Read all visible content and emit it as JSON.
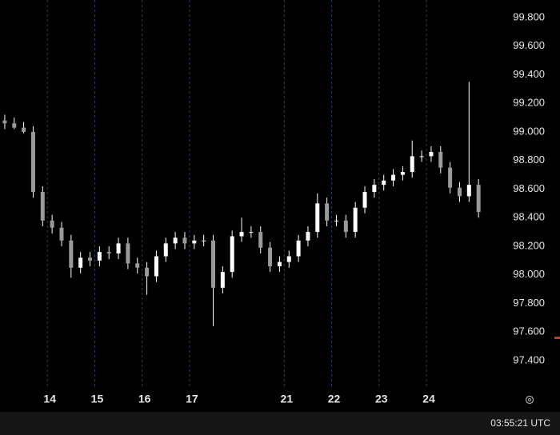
{
  "chart_data": {
    "type": "candlestick",
    "color": "#ffffff",
    "grid": "vertical",
    "grid_color": "#2a3f66",
    "x": [
      0.1,
      0.3,
      0.5,
      0.7,
      0.9,
      1.1,
      1.3,
      1.5,
      1.7,
      1.9,
      2.1,
      2.3,
      2.5,
      2.7,
      2.9,
      3.1,
      3.3,
      3.5,
      3.7,
      3.9,
      4.1,
      4.3,
      4.5,
      4.7,
      4.9,
      5.1,
      5.3,
      5.5,
      5.7,
      5.9,
      6.1,
      6.3,
      6.5,
      6.7,
      6.9,
      7.1,
      7.3,
      7.5,
      7.7,
      7.9,
      8.1,
      8.3,
      8.5,
      8.7,
      8.9,
      9.1,
      9.3,
      9.5,
      9.7,
      9.9,
      10.1
    ],
    "open": [
      99.08,
      99.06,
      99.03,
      99.0,
      98.58,
      98.38,
      98.33,
      98.24,
      98.05,
      98.12,
      98.1,
      98.16,
      98.15,
      98.22,
      98.08,
      98.05,
      97.99,
      98.13,
      98.22,
      98.26,
      98.22,
      98.24,
      98.24,
      97.91,
      98.02,
      98.27,
      98.3,
      98.3,
      98.19,
      98.06,
      98.09,
      98.13,
      98.24,
      98.3,
      98.5,
      98.38,
      98.38,
      98.3,
      98.47,
      98.58,
      98.63,
      98.66,
      98.7,
      98.72,
      98.83,
      98.83,
      98.86,
      98.75,
      98.61,
      98.55,
      98.63
    ],
    "high": [
      99.12,
      99.1,
      99.07,
      99.04,
      98.62,
      98.42,
      98.37,
      98.28,
      98.16,
      98.16,
      98.2,
      98.2,
      98.26,
      98.26,
      98.12,
      98.09,
      98.17,
      98.26,
      98.3,
      98.3,
      98.28,
      98.28,
      98.28,
      98.06,
      98.31,
      98.4,
      98.34,
      98.34,
      98.23,
      98.13,
      98.17,
      98.28,
      98.34,
      98.57,
      98.54,
      98.42,
      98.42,
      98.51,
      98.62,
      98.67,
      98.7,
      98.74,
      98.76,
      98.94,
      98.87,
      98.9,
      98.9,
      98.79,
      98.65,
      99.35,
      98.67
    ],
    "low": [
      99.02,
      99.02,
      98.99,
      98.54,
      98.34,
      98.29,
      98.2,
      97.98,
      98.01,
      98.06,
      98.06,
      98.11,
      98.11,
      98.04,
      98.01,
      97.86,
      97.95,
      98.09,
      98.18,
      98.18,
      98.18,
      98.2,
      97.64,
      97.87,
      97.98,
      98.23,
      98.26,
      98.15,
      98.02,
      98.02,
      98.05,
      98.09,
      98.2,
      98.26,
      98.34,
      98.34,
      98.26,
      98.26,
      98.43,
      98.54,
      98.59,
      98.62,
      98.66,
      98.68,
      98.79,
      98.79,
      98.71,
      98.57,
      98.51,
      98.51,
      98.4
    ],
    "close": [
      99.06,
      99.03,
      99.0,
      98.58,
      98.38,
      98.33,
      98.24,
      98.05,
      98.12,
      98.1,
      98.16,
      98.15,
      98.22,
      98.08,
      98.05,
      97.99,
      98.13,
      98.22,
      98.26,
      98.22,
      98.24,
      98.24,
      97.91,
      98.02,
      98.27,
      98.3,
      98.3,
      98.19,
      98.06,
      98.09,
      98.13,
      98.24,
      98.3,
      98.5,
      98.38,
      98.38,
      98.3,
      98.47,
      98.58,
      98.63,
      98.66,
      98.7,
      98.72,
      98.83,
      98.83,
      98.86,
      98.75,
      98.61,
      98.55,
      98.63,
      98.44
    ],
    "xlim": [
      0,
      10.3
    ],
    "xticks": [
      {
        "value": 1,
        "label": "14"
      },
      {
        "value": 2,
        "label": "15"
      },
      {
        "value": 3,
        "label": "16"
      },
      {
        "value": 4,
        "label": "17"
      },
      {
        "value": 6,
        "label": "21"
      },
      {
        "value": 7,
        "label": "22"
      },
      {
        "value": 8,
        "label": "23"
      },
      {
        "value": 9,
        "label": "24"
      }
    ],
    "ylim": [
      97.204,
      99.923
    ],
    "yticks": [
      {
        "value": 97.4,
        "label": "97.400"
      },
      {
        "value": 97.6,
        "label": "97.600"
      },
      {
        "value": 97.8,
        "label": "97.800"
      },
      {
        "value": 98.0,
        "label": "98.000"
      },
      {
        "value": 98.2,
        "label": "98.200"
      },
      {
        "value": 98.4,
        "label": "98.400"
      },
      {
        "value": 98.6,
        "label": "98.600"
      },
      {
        "value": 98.8,
        "label": "98.800"
      },
      {
        "value": 99.0,
        "label": "99.000"
      },
      {
        "value": 99.2,
        "label": "99.200"
      },
      {
        "value": 99.4,
        "label": "99.400"
      },
      {
        "value": 99.6,
        "label": "99.600"
      },
      {
        "value": 99.8,
        "label": "99.800"
      }
    ],
    "clock": "03:55:21 UTC"
  }
}
